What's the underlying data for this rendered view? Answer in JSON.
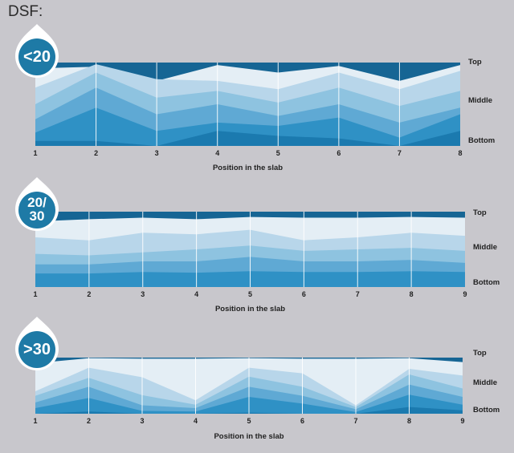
{
  "page": {
    "title": "DSF:"
  },
  "colors": {
    "background": "#c8c7cc",
    "layers": [
      "#e4eef5",
      "#b8d6ea",
      "#8ec3e0",
      "#5fa9d4",
      "#2f91c5",
      "#1b7aaf",
      "#166594"
    ],
    "badge_outer": "#ffffff",
    "badge_inner": "#1e7aa6",
    "gridline": "#ffffff"
  },
  "chart_data": [
    {
      "type": "area",
      "badge": "<20",
      "xlabel": "Position in the slab",
      "x_ticks": [
        "1",
        "2",
        "3",
        "4",
        "5",
        "6",
        "7",
        "8"
      ],
      "depth_labels": [
        "Top",
        "Middle",
        "Bottom"
      ],
      "x_range": [
        1,
        8
      ],
      "depth_range": [
        0,
        1
      ],
      "grid": "vertical gridlines at each position",
      "series": [
        {
          "values": [
            0.93,
            0.95,
            0.78,
            0.97,
            0.88,
            0.96,
            0.78,
            0.97
          ]
        },
        {
          "values": [
            0.7,
            0.98,
            0.8,
            0.78,
            0.68,
            0.88,
            0.68,
            0.9
          ]
        },
        {
          "values": [
            0.5,
            0.88,
            0.58,
            0.66,
            0.52,
            0.7,
            0.48,
            0.66
          ]
        },
        {
          "values": [
            0.32,
            0.7,
            0.38,
            0.5,
            0.36,
            0.5,
            0.28,
            0.46
          ]
        },
        {
          "values": [
            0.16,
            0.46,
            0.18,
            0.28,
            0.24,
            0.34,
            0.1,
            0.38
          ]
        },
        {
          "values": [
            0.06,
            0.06,
            0.0,
            0.18,
            0.12,
            0.09,
            0.0,
            0.18
          ]
        }
      ]
    },
    {
      "type": "area",
      "badge": "20/30",
      "xlabel": "Position in the slab",
      "x_ticks": [
        "1",
        "2",
        "3",
        "4",
        "5",
        "6",
        "7",
        "8",
        "9"
      ],
      "depth_labels": [
        "Top",
        "Middle",
        "Bottom"
      ],
      "x_range": [
        1,
        9
      ],
      "depth_range": [
        0,
        1
      ],
      "grid": "vertical gridlines at each position",
      "series": [
        {
          "values": [
            0.87,
            0.9,
            0.92,
            0.9,
            0.93,
            0.92,
            0.92,
            0.93,
            0.92
          ]
        },
        {
          "values": [
            0.66,
            0.62,
            0.72,
            0.7,
            0.76,
            0.62,
            0.66,
            0.72,
            0.68
          ]
        },
        {
          "values": [
            0.44,
            0.42,
            0.46,
            0.5,
            0.55,
            0.48,
            0.5,
            0.52,
            0.48
          ]
        },
        {
          "values": [
            0.3,
            0.3,
            0.34,
            0.34,
            0.4,
            0.34,
            0.34,
            0.36,
            0.32
          ]
        },
        {
          "values": [
            0.18,
            0.18,
            0.2,
            0.19,
            0.21,
            0.2,
            0.2,
            0.21,
            0.2
          ]
        }
      ]
    },
    {
      "type": "area",
      "badge": ">30",
      "xlabel": "Position in the slab",
      "x_ticks": [
        "1",
        "2",
        "3",
        "4",
        "5",
        "6",
        "7",
        "8",
        "9"
      ],
      "depth_labels": [
        "Top",
        "Middle",
        "Bottom"
      ],
      "x_range": [
        1,
        9
      ],
      "depth_range": [
        0,
        1
      ],
      "grid": "vertical gridlines at each position",
      "series": [
        {
          "values": [
            0.9,
            0.99,
            0.98,
            0.98,
            0.99,
            0.98,
            0.98,
            0.99,
            0.92
          ]
        },
        {
          "values": [
            0.4,
            0.82,
            0.65,
            0.24,
            0.82,
            0.72,
            0.15,
            0.8,
            0.68
          ]
        },
        {
          "values": [
            0.32,
            0.64,
            0.33,
            0.16,
            0.66,
            0.48,
            0.12,
            0.7,
            0.45
          ]
        },
        {
          "values": [
            0.2,
            0.48,
            0.15,
            0.1,
            0.48,
            0.32,
            0.08,
            0.52,
            0.3
          ]
        },
        {
          "values": [
            0.1,
            0.28,
            0.05,
            0.04,
            0.3,
            0.18,
            0.03,
            0.34,
            0.16
          ]
        },
        {
          "values": [
            0.0,
            0.04,
            0.0,
            0.0,
            0.02,
            0.0,
            0.0,
            0.12,
            0.06
          ]
        }
      ]
    }
  ]
}
